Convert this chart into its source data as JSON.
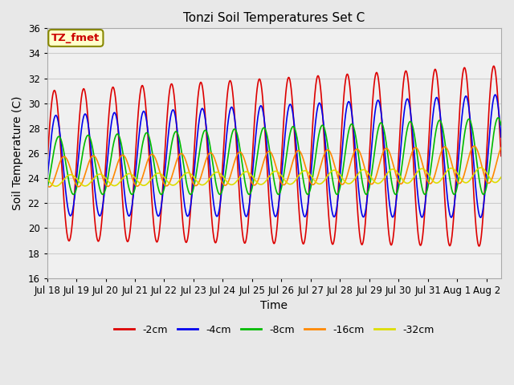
{
  "title": "Tonzi Soil Temperatures Set C",
  "xlabel": "Time",
  "ylabel": "Soil Temperature (C)",
  "ylim": [
    16,
    36
  ],
  "xlim": [
    0,
    15.5
  ],
  "annotation_text": "TZ_fmet",
  "annotation_color": "#cc0000",
  "annotation_bg": "#ffffcc",
  "annotation_border": "#888800",
  "fig_facecolor": "#e8e8e8",
  "plot_facecolor": "#f0f0f0",
  "grid_color": "#cccccc",
  "xtick_labels": [
    "Jul 18",
    "Jul 19",
    "Jul 20",
    "Jul 21",
    "Jul 22",
    "Jul 23",
    "Jul 24",
    "Jul 25",
    "Jul 26",
    "Jul 27",
    "Jul 28",
    "Jul 29",
    "Jul 30",
    "Jul 31",
    "Aug 1",
    "Aug 2"
  ],
  "legend_labels": [
    "-2cm",
    "-4cm",
    "-8cm",
    "-16cm",
    "-32cm"
  ],
  "legend_colors": [
    "#dd0000",
    "#0000ee",
    "#00bb00",
    "#ff8800",
    "#dddd00"
  ],
  "series_params": {
    "-2cm": {
      "color": "#dd0000",
      "lw": 1.2,
      "phase_lag": 0.25,
      "amp_base": 6.0,
      "amp_slope": 0.08,
      "mean_base": 25.0,
      "mean_slope": 0.05
    },
    "-4cm": {
      "color": "#0000ee",
      "lw": 1.2,
      "phase_lag": 0.3,
      "amp_base": 4.0,
      "amp_slope": 0.06,
      "mean_base": 25.0,
      "mean_slope": 0.05
    },
    "-8cm": {
      "color": "#00bb00",
      "lw": 1.2,
      "phase_lag": 0.4,
      "amp_base": 2.3,
      "amp_slope": 0.05,
      "mean_base": 25.0,
      "mean_slope": 0.05
    },
    "-16cm": {
      "color": "#ff8800",
      "lw": 1.2,
      "phase_lag": 0.58,
      "amp_base": 1.2,
      "amp_slope": 0.02,
      "mean_base": 24.5,
      "mean_slope": 0.04
    },
    "-32cm": {
      "color": "#dddd00",
      "lw": 1.2,
      "phase_lag": 0.8,
      "amp_base": 0.45,
      "amp_slope": 0.01,
      "mean_base": 23.8,
      "mean_slope": 0.03
    }
  }
}
